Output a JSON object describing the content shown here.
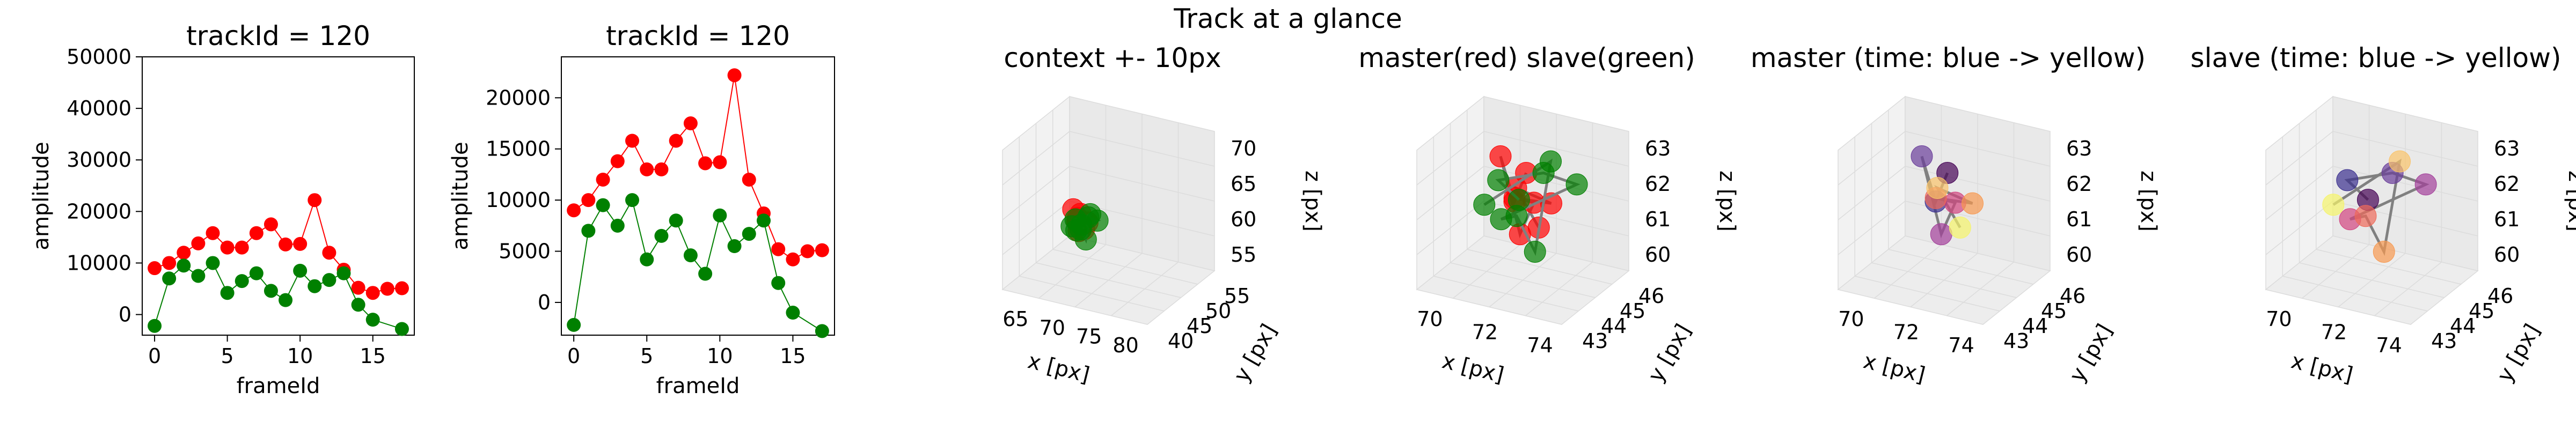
{
  "suptitle": "Track at a glance",
  "colors": {
    "master": "#ff0000",
    "slave": "#008000",
    "link": "#808080",
    "pane": "#f2f2f2",
    "grid": "#dcdcdc"
  },
  "chart_data": [
    {
      "type": "line",
      "title": "trackId = 120",
      "xlabel": "frameId",
      "ylabel": "amplitude",
      "xlim": [
        -0.85,
        17.85
      ],
      "ylim": [
        -4000,
        50000
      ],
      "xticks": [
        0,
        5,
        10,
        15
      ],
      "yticks": [
        0,
        10000,
        20000,
        30000,
        40000,
        50000
      ],
      "x": [
        0,
        1,
        2,
        3,
        4,
        5,
        6,
        7,
        8,
        9,
        10,
        11,
        12,
        13,
        14,
        15,
        16,
        17
      ],
      "series": [
        {
          "values": [
            9000,
            10000,
            12000,
            13800,
            15800,
            13000,
            13000,
            15800,
            17500,
            13600,
            13700,
            22200,
            12000,
            8700,
            5200,
            4200,
            5000,
            5100
          ]
        },
        {
          "values": [
            -2200,
            7000,
            9500,
            7500,
            10000,
            4200,
            6500,
            8000,
            4600,
            2800,
            8500,
            5500,
            6700,
            8000,
            1900,
            -1000,
            null,
            -2800
          ]
        }
      ]
    },
    {
      "type": "line",
      "title": "trackId = 120",
      "xlabel": "frameId",
      "ylabel": "amplitude",
      "xlim": [
        -0.85,
        17.85
      ],
      "ylim": [
        -3200,
        24000
      ],
      "xticks": [
        0,
        5,
        10,
        15
      ],
      "yticks": [
        0,
        5000,
        10000,
        15000,
        20000
      ],
      "x": [
        0,
        1,
        2,
        3,
        4,
        5,
        6,
        7,
        8,
        9,
        10,
        11,
        12,
        13,
        14,
        15,
        16,
        17
      ],
      "series": [
        {
          "values": [
            9000,
            10000,
            12000,
            13800,
            15800,
            13000,
            13000,
            15800,
            17500,
            13600,
            13700,
            22200,
            12000,
            8700,
            5200,
            4200,
            5000,
            5100
          ]
        },
        {
          "values": [
            -2200,
            7000,
            9500,
            7500,
            10000,
            4200,
            6500,
            8000,
            4600,
            2800,
            8500,
            5500,
            6700,
            8000,
            1900,
            -1000,
            null,
            -2800
          ]
        }
      ]
    },
    {
      "type": "scatter",
      "title": "context +- 10px",
      "xlabel": "x [px]",
      "ylabel": "y [px]",
      "zlabel": "z [px]",
      "xticks": [
        65,
        70,
        75,
        80
      ],
      "yticks": [
        40,
        45,
        50,
        55
      ],
      "zticks": [
        55,
        60,
        65,
        70
      ]
    },
    {
      "type": "scatter",
      "title": "master(red) slave(green)",
      "xlabel": "x [px]",
      "ylabel": "y [px]",
      "zlabel": "z [px]",
      "xticks": [
        70,
        72,
        74
      ],
      "yticks": [
        43,
        44,
        45,
        46
      ],
      "zticks": [
        60,
        61,
        62,
        63
      ]
    },
    {
      "type": "scatter",
      "title": "master (time: blue -> yellow)",
      "xlabel": "x [px]",
      "ylabel": "y [px]",
      "zlabel": "z [px]",
      "xticks": [
        70,
        72,
        74
      ],
      "yticks": [
        43,
        44,
        45,
        46
      ],
      "zticks": [
        60,
        61,
        62,
        63
      ]
    },
    {
      "type": "scatter",
      "title": "slave (time: blue -> yellow)",
      "xlabel": "x [px]",
      "ylabel": "y [px]",
      "zlabel": "z [px]",
      "xticks": [
        70,
        72,
        74
      ],
      "yticks": [
        43,
        44,
        45,
        46
      ],
      "zticks": [
        60,
        61,
        62,
        63
      ]
    }
  ]
}
